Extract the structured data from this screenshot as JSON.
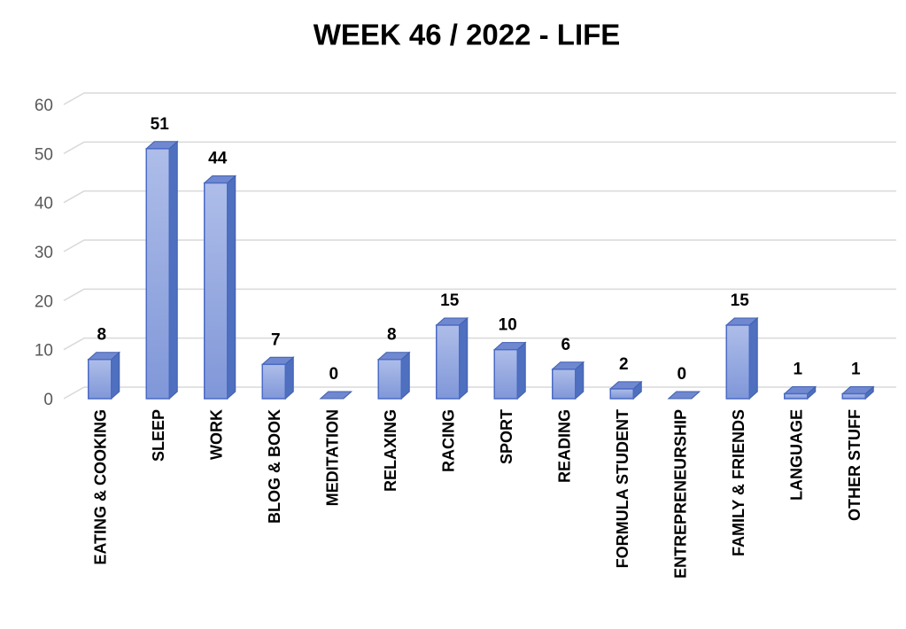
{
  "chart_data": {
    "type": "bar3d",
    "title": "WEEK 46 / 2022 - LIFE",
    "categories": [
      "EATING & COOKING",
      "SLEEP",
      "WORK",
      "BLOG & BOOK",
      "MEDITATION",
      "RELAXING",
      "RACING",
      "SPORT",
      "READING",
      "FORMULA STUDENT",
      "ENTREPRENEURSHIP",
      "FAMILY & FRIENDS",
      "LANGUAGE",
      "OTHER STUFF"
    ],
    "values": [
      8,
      51,
      44,
      7,
      0,
      8,
      15,
      10,
      6,
      2,
      0,
      15,
      1,
      1
    ],
    "color": "#8fa3df",
    "ylim": [
      0,
      60
    ],
    "yticks": [
      0,
      10,
      20,
      30,
      40,
      50,
      60
    ],
    "grid": true
  }
}
